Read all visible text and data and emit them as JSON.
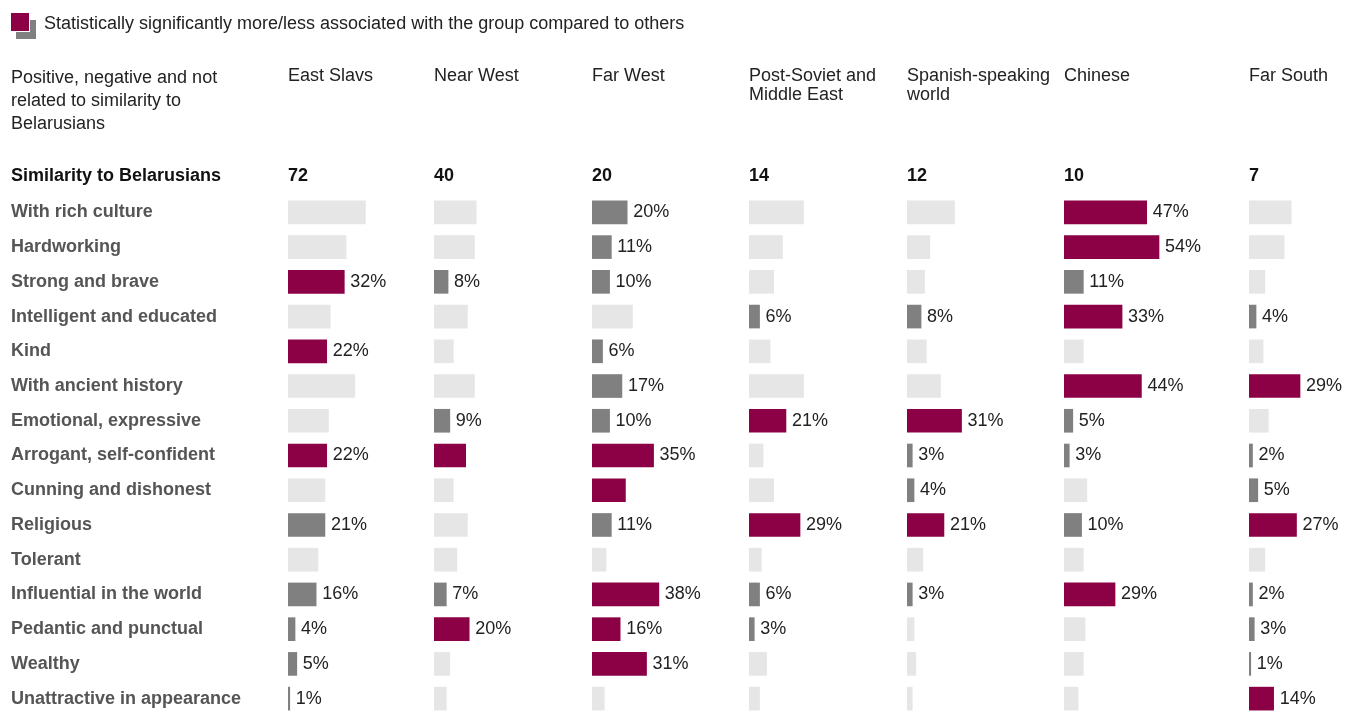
{
  "chart_data": [
    {
      "type": "bar",
      "orientation": "horizontal",
      "title": "East Slavs",
      "subtitle": "72",
      "tick_labels": "y",
      "legend": false,
      "annotations": [
        "Statistically significantly more/less associated with the group compared to others",
        "Positive, negative and not related to similarity to Belarusians",
        "Similarity to Belarusians"
      ],
      "categories": [
        "With rich culture",
        "Hardworking",
        "Strong and brave",
        "Intelligent and educated",
        "Kind",
        "With ancient history",
        "Emotional, expressive",
        "Arrogant, self-confident",
        "Cunning and dishonest",
        "Religious",
        "Tolerant",
        "Influential in the world",
        "Pedantic and punctual",
        "Wealthy",
        "Unattractive in appearance"
      ],
      "values": [
        44,
        33,
        32,
        24,
        22,
        38,
        23,
        22,
        21,
        21,
        17,
        16,
        4,
        5,
        1
      ],
      "colors": [
        "#e6e6e6",
        "#e6e6e6",
        "#8c0046",
        "#e6e6e6",
        "#8c0046",
        "#e6e6e6",
        "#e6e6e6",
        "#8c0046",
        "#e6e6e6",
        "#808080",
        "#e6e6e6",
        "#808080",
        "#808080",
        "#808080",
        "#808080"
      ],
      "value_labels": [
        null,
        null,
        "32%",
        null,
        "22%",
        null,
        null,
        "22%",
        null,
        "21%",
        null,
        "16%",
        "4%",
        "5%",
        "1%"
      ]
    },
    {
      "type": "bar",
      "orientation": "horizontal",
      "title": "Near West",
      "subtitle": "40",
      "tick_labels": false,
      "legend": false,
      "categories": [
        null,
        null,
        null,
        null,
        null,
        null,
        null,
        null,
        null,
        null,
        null,
        null,
        null,
        null,
        null
      ],
      "values": [
        24,
        23,
        8,
        19,
        11,
        23,
        9,
        18,
        11,
        19,
        13,
        7,
        20,
        9,
        7
      ],
      "colors": [
        "#e6e6e6",
        "#e6e6e6",
        "#808080",
        "#e6e6e6",
        "#e6e6e6",
        "#e6e6e6",
        "#808080",
        "#8c0046",
        "#e6e6e6",
        "#e6e6e6",
        "#e6e6e6",
        "#808080",
        "#8c0046",
        "#e6e6e6",
        "#e6e6e6"
      ],
      "value_labels": [
        null,
        null,
        "8%",
        null,
        null,
        null,
        "9%",
        null,
        null,
        null,
        null,
        "7%",
        "20%",
        null,
        null
      ]
    },
    {
      "type": "bar",
      "orientation": "horizontal",
      "title": "Far West",
      "subtitle": "20",
      "tick_labels": false,
      "legend": false,
      "categories": [
        null,
        null,
        null,
        null,
        null,
        null,
        null,
        null,
        null,
        null,
        null,
        null,
        null,
        null,
        null
      ],
      "values": [
        20,
        11,
        10,
        23,
        6,
        17,
        10,
        35,
        19,
        11,
        8,
        38,
        16,
        31,
        7
      ],
      "colors": [
        "#808080",
        "#808080",
        "#808080",
        "#e6e6e6",
        "#808080",
        "#808080",
        "#808080",
        "#8c0046",
        "#8c0046",
        "#808080",
        "#e6e6e6",
        "#8c0046",
        "#8c0046",
        "#8c0046",
        "#e6e6e6"
      ],
      "value_labels": [
        "20%",
        "11%",
        "10%",
        null,
        "6%",
        "17%",
        "10%",
        "35%",
        null,
        "11%",
        null,
        "38%",
        "16%",
        "31%",
        null
      ]
    },
    {
      "type": "bar",
      "orientation": "horizontal",
      "title": "Post-Soviet and Middle East",
      "subtitle": "14",
      "tick_labels": false,
      "legend": false,
      "categories": [
        null,
        null,
        null,
        null,
        null,
        null,
        null,
        null,
        null,
        null,
        null,
        null,
        null,
        null,
        null
      ],
      "values": [
        31,
        19,
        14,
        6,
        12,
        31,
        21,
        8,
        14,
        29,
        7,
        6,
        3,
        10,
        6
      ],
      "colors": [
        "#e6e6e6",
        "#e6e6e6",
        "#e6e6e6",
        "#808080",
        "#e6e6e6",
        "#e6e6e6",
        "#8c0046",
        "#e6e6e6",
        "#e6e6e6",
        "#8c0046",
        "#e6e6e6",
        "#808080",
        "#808080",
        "#e6e6e6",
        "#e6e6e6"
      ],
      "value_labels": [
        null,
        null,
        null,
        "6%",
        null,
        null,
        "21%",
        null,
        null,
        "29%",
        null,
        "6%",
        "3%",
        null,
        null
      ]
    },
    {
      "type": "bar",
      "orientation": "horizontal",
      "title": "Spanish-speaking world",
      "subtitle": "12",
      "tick_labels": false,
      "legend": false,
      "categories": [
        null,
        null,
        null,
        null,
        null,
        null,
        null,
        null,
        null,
        null,
        null,
        null,
        null,
        null,
        null
      ],
      "values": [
        27,
        13,
        10,
        8,
        11,
        19,
        31,
        3,
        4,
        21,
        9,
        3,
        4,
        5,
        3
      ],
      "colors": [
        "#e6e6e6",
        "#e6e6e6",
        "#e6e6e6",
        "#808080",
        "#e6e6e6",
        "#e6e6e6",
        "#8c0046",
        "#808080",
        "#808080",
        "#8c0046",
        "#e6e6e6",
        "#808080",
        "#e6e6e6",
        "#e6e6e6",
        "#e6e6e6"
      ],
      "value_labels": [
        null,
        null,
        null,
        "8%",
        null,
        null,
        "31%",
        "3%",
        "4%",
        "21%",
        null,
        "3%",
        null,
        null,
        null
      ]
    },
    {
      "type": "bar",
      "orientation": "horizontal",
      "title": "Chinese",
      "subtitle": "10",
      "tick_labels": false,
      "legend": false,
      "categories": [
        null,
        null,
        null,
        null,
        null,
        null,
        null,
        null,
        null,
        null,
        null,
        null,
        null,
        null,
        null
      ],
      "values": [
        47,
        54,
        11,
        33,
        11,
        44,
        5,
        3,
        13,
        10,
        11,
        29,
        12,
        11,
        8
      ],
      "colors": [
        "#8c0046",
        "#8c0046",
        "#808080",
        "#8c0046",
        "#e6e6e6",
        "#8c0046",
        "#808080",
        "#808080",
        "#e6e6e6",
        "#808080",
        "#e6e6e6",
        "#8c0046",
        "#e6e6e6",
        "#e6e6e6",
        "#e6e6e6"
      ],
      "value_labels": [
        "47%",
        "54%",
        "11%",
        "33%",
        null,
        "44%",
        "5%",
        "3%",
        null,
        "10%",
        null,
        "29%",
        null,
        null,
        null
      ]
    },
    {
      "type": "bar",
      "orientation": "horizontal",
      "title": "Far South",
      "subtitle": "7",
      "tick_labels": false,
      "legend": false,
      "categories": [
        null,
        null,
        null,
        null,
        null,
        null,
        null,
        null,
        null,
        null,
        null,
        null,
        null,
        null,
        null
      ],
      "values": [
        24,
        20,
        9,
        4,
        8,
        29,
        11,
        2,
        5,
        27,
        9,
        2,
        3,
        1,
        14
      ],
      "colors": [
        "#e6e6e6",
        "#e6e6e6",
        "#e6e6e6",
        "#808080",
        "#e6e6e6",
        "#8c0046",
        "#e6e6e6",
        "#808080",
        "#808080",
        "#8c0046",
        "#e6e6e6",
        "#808080",
        "#808080",
        "#808080",
        "#8c0046"
      ],
      "value_labels": [
        null,
        null,
        null,
        "4%",
        null,
        "29%",
        null,
        "2%",
        "5%",
        "27%",
        null,
        "2%",
        "3%",
        "1%",
        "14%"
      ]
    }
  ]
}
